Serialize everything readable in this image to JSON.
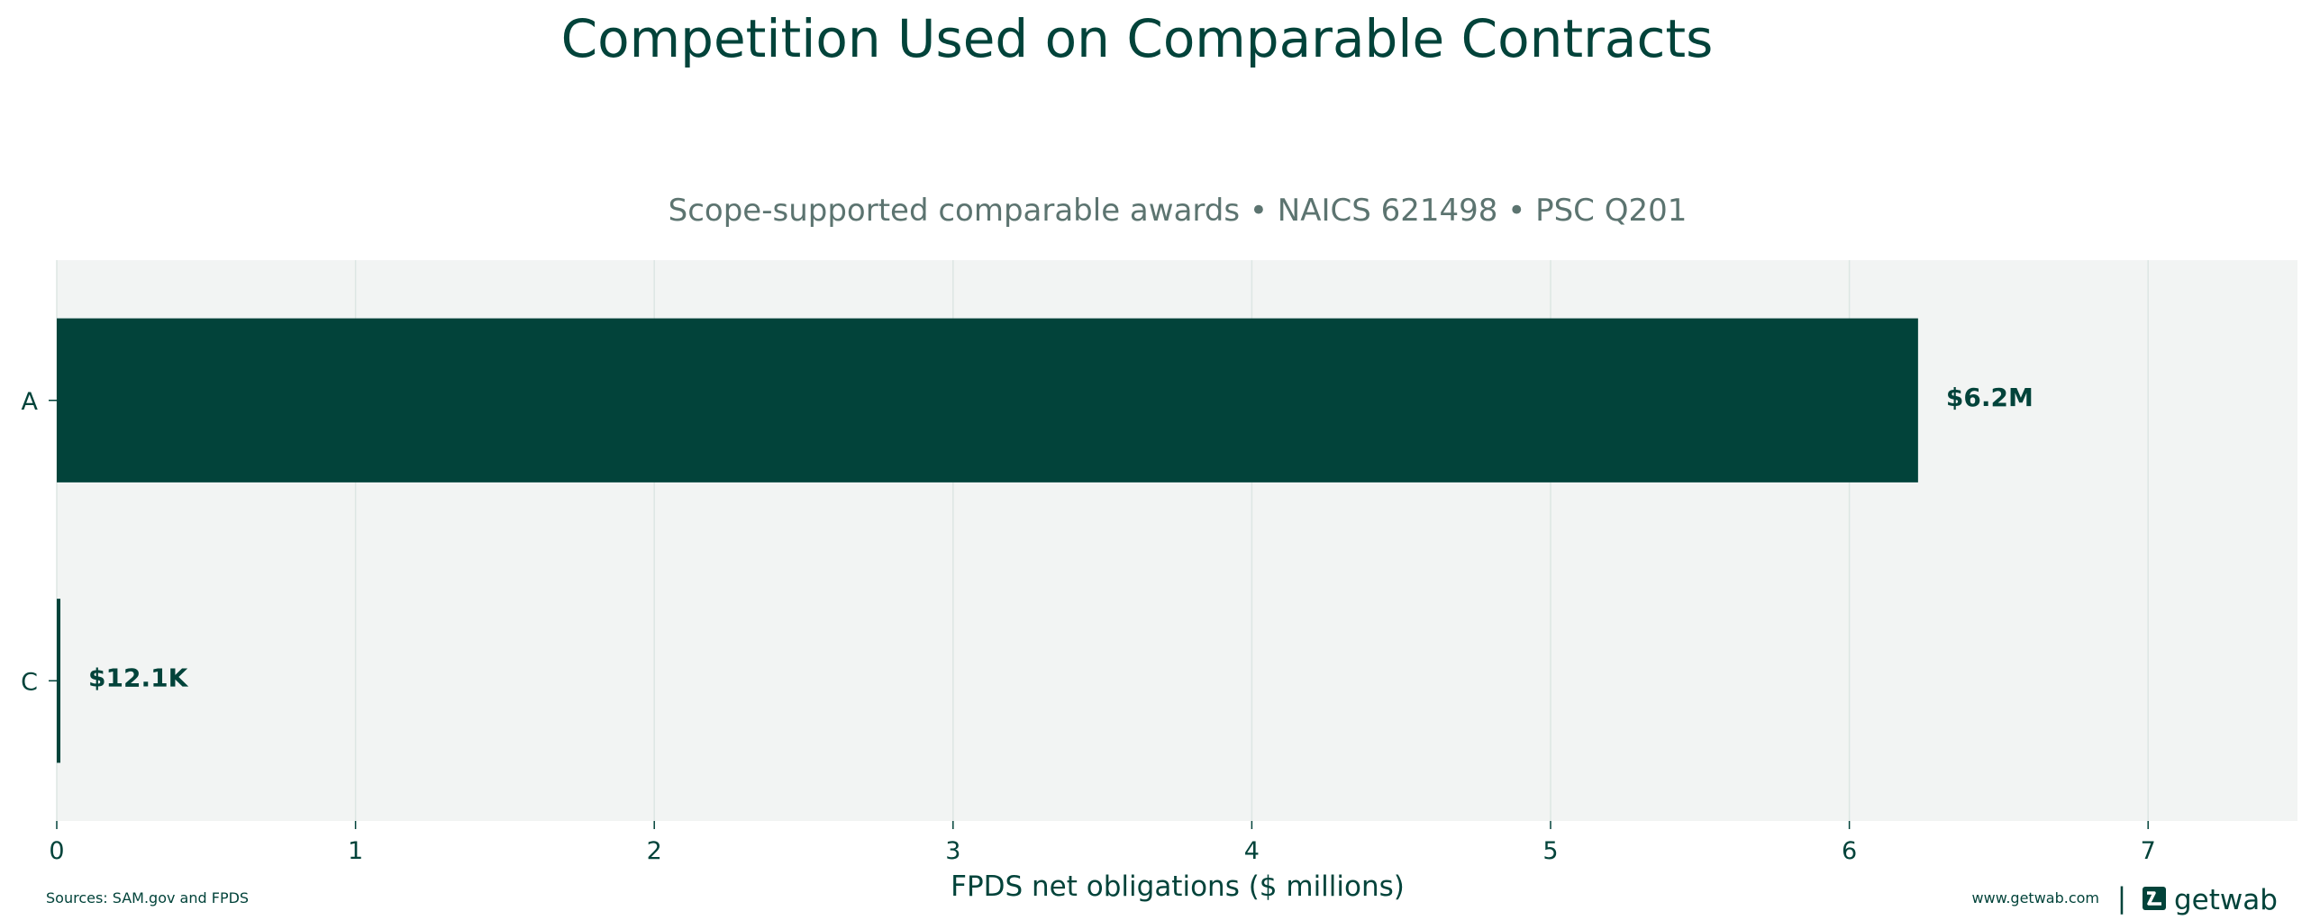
{
  "chart_data": {
    "type": "bar",
    "orientation": "horizontal",
    "title": "Competition Used on Comparable Contracts",
    "subtitle": "Scope-supported comparable awards • NAICS 621498 • PSC Q201",
    "categories": [
      "A",
      "C"
    ],
    "values": [
      6.23,
      0.0121
    ],
    "value_labels": [
      "$6.2M",
      "$12.1K"
    ],
    "xlabel": "FPDS net obligations ($ millions)",
    "ylabel": "",
    "xlim": [
      0,
      7.5
    ],
    "xticks": [
      0,
      1,
      2,
      3,
      4,
      5,
      6,
      7
    ],
    "grid": "vertical",
    "bar_color": "#02433A",
    "plot_background": "#F2F4F3",
    "grid_color": "#DDE6E3"
  },
  "footer": {
    "sources": "Sources: SAM.gov and FPDS",
    "website": "www.getwab.com",
    "separator": "|",
    "brand_name": "getwab"
  },
  "icons": {
    "logo": "getwab-logo-icon"
  }
}
